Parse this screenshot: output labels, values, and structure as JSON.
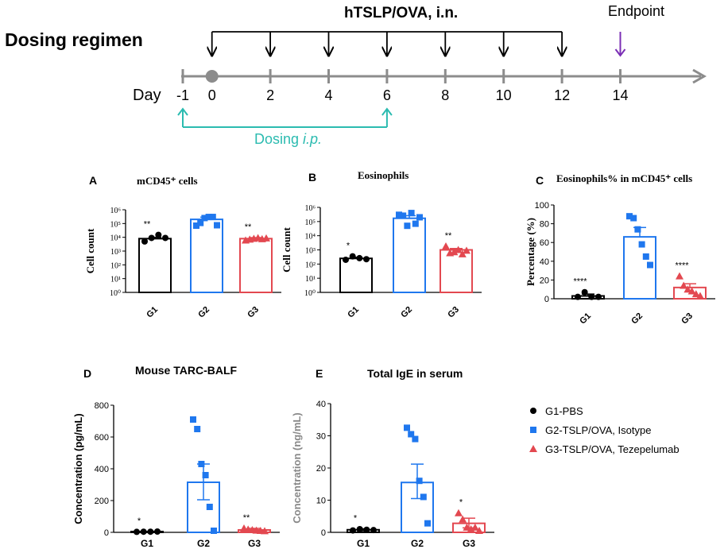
{
  "regimen": {
    "title": "Dosing regimen",
    "day_label": "Day",
    "inl_label": "hTSLP/OVA, i.n.",
    "endpoint_label": "Endpoint",
    "ip_label": "Dosing ",
    "ip_italic": "i.p.",
    "days": [
      "-1",
      "0",
      "2",
      "4",
      "6",
      "8",
      "10",
      "12",
      "14"
    ],
    "inl_days": [
      "0",
      "2",
      "4",
      "6",
      "8",
      "10",
      "12"
    ],
    "ip_days": [
      "-1",
      "6"
    ],
    "endpoint_day": "14",
    "colors": {
      "axis": "#8c8c8c",
      "ip": "#2bbbb0",
      "endpoint": "#7b2fb5",
      "arrows": "#000000"
    }
  },
  "legend": [
    {
      "label": "G1-PBS",
      "color": "#000000",
      "marker": "circle"
    },
    {
      "label": "G2-TSLP/OVA, Isotype",
      "color": "#1f77ee",
      "marker": "square"
    },
    {
      "label": "G3-TSLP/OVA, Tezepelumab",
      "color": "#e34850",
      "marker": "triangle"
    }
  ],
  "chart_data": [
    {
      "id": "A",
      "letter": "A",
      "type": "bar",
      "scale": "log",
      "title_html": "mCD45⁺ cells",
      "ylabel": "Cell count",
      "yticks": [
        "10⁰",
        "10¹",
        "10²",
        "10³",
        "10⁴",
        "10⁵",
        "10⁶"
      ],
      "ylim": [
        1,
        1000000
      ],
      "categories": [
        "G1",
        "G2",
        "G3"
      ],
      "means": [
        8000,
        200000,
        8000
      ],
      "sem_hi": [
        10000,
        290000,
        9500
      ],
      "points": [
        [
          5000,
          9000,
          15000,
          9000
        ],
        [
          70000,
          110000,
          250000,
          300000,
          300000,
          75000
        ],
        [
          6000,
          7000,
          8000,
          9000,
          7500,
          8500
        ]
      ],
      "sig": [
        "**",
        "",
        "**"
      ]
    },
    {
      "id": "B",
      "letter": "B",
      "type": "bar",
      "scale": "log",
      "title_html": "Eosinophils",
      "ylabel": "Cell count",
      "yticks": [
        "10⁰",
        "10¹",
        "10²",
        "10³",
        "10⁴",
        "10⁵",
        "10⁶"
      ],
      "ylim": [
        1,
        1000000
      ],
      "categories": [
        "G1",
        "G2",
        "G3"
      ],
      "means": [
        250,
        170000,
        1000
      ],
      "sem_hi": [
        300,
        260000,
        1250
      ],
      "points": [
        [
          200,
          350,
          260,
          220
        ],
        [
          300000,
          260000,
          50000,
          400000,
          70000,
          200000
        ],
        [
          1800,
          600,
          700,
          1000,
          500,
          900
        ]
      ],
      "sig": [
        "*",
        "",
        "**"
      ]
    },
    {
      "id": "C",
      "letter": "C",
      "type": "bar",
      "scale": "linear",
      "title_html": "Eosinophils% in mCD45⁺ cells",
      "ylabel": "Percentage (%)",
      "yticks": [
        "0",
        "20",
        "40",
        "60",
        "80",
        "100"
      ],
      "ylim": [
        0,
        100
      ],
      "categories": [
        "G1",
        "G2",
        "G3"
      ],
      "means": [
        3,
        66,
        12
      ],
      "sem_hi": [
        5,
        76,
        16
      ],
      "points": [
        [
          2,
          7,
          2,
          2
        ],
        [
          88,
          86,
          74,
          58,
          45,
          36
        ],
        [
          24,
          14,
          10,
          8,
          5,
          3
        ]
      ],
      "sig": [
        "****",
        "",
        "****"
      ]
    },
    {
      "id": "D",
      "letter": "D",
      "type": "bar",
      "scale": "linear",
      "title_html": "Mouse TARC-BALF",
      "ylabel": "Concentration (pg/mL)",
      "yticks": [
        "0",
        "200",
        "400",
        "600",
        "800"
      ],
      "ylim": [
        0,
        800
      ],
      "categories": [
        "G1",
        "G2",
        "G3"
      ],
      "means": [
        5,
        315,
        15
      ],
      "sem_hi": [
        5,
        430,
        25
      ],
      "sem_lo": [
        5,
        205,
        8
      ],
      "points": [
        [
          3,
          4,
          4,
          5
        ],
        [
          710,
          650,
          430,
          360,
          160,
          10
        ],
        [
          25,
          18,
          15,
          12,
          10,
          8
        ]
      ],
      "sig": [
        "*",
        "",
        "**"
      ]
    },
    {
      "id": "E",
      "letter": "E",
      "type": "bar",
      "scale": "linear",
      "title_html": "Total IgE in serum",
      "ylabel": "Concentration (ng/mL)",
      "yticks": [
        "0",
        "10",
        "20",
        "30",
        "40"
      ],
      "ylim": [
        0,
        40
      ],
      "categories": [
        "G1",
        "G2",
        "G3"
      ],
      "means": [
        0.8,
        15.5,
        2.8
      ],
      "sem_hi": [
        1.1,
        21.2,
        4.4
      ],
      "sem_lo": [
        0.5,
        10.5,
        1.4
      ],
      "points": [
        [
          0.6,
          1.0,
          0.8,
          0.7
        ],
        [
          32.5,
          30.5,
          29,
          16,
          11,
          2.8
        ],
        [
          6,
          4,
          1.5,
          1,
          1.5,
          0.5
        ]
      ],
      "sig": [
        "*",
        "",
        "*"
      ]
    }
  ]
}
